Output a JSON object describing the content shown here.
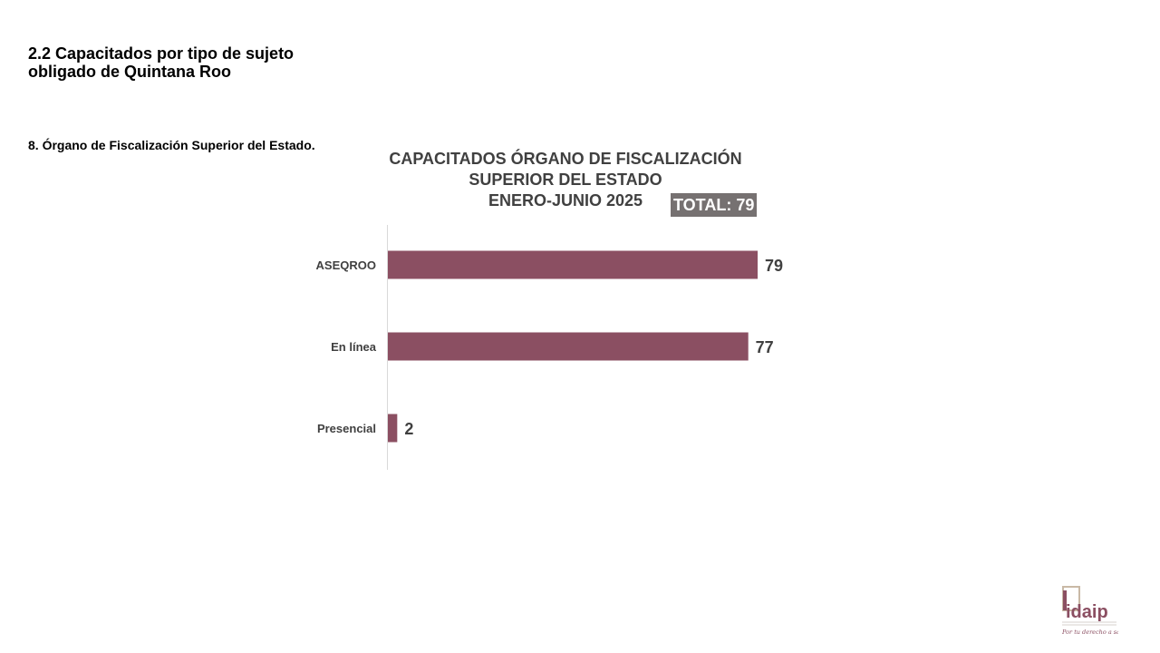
{
  "slide": {
    "title_line1": "2.2 Capacitados por tipo de sujeto",
    "title_line2": "obligado de Quintana Roo",
    "subtitle": "8. Órgano de Fiscalización Superior del Estado."
  },
  "chart_data": {
    "type": "bar",
    "orientation": "horizontal",
    "title_lines": [
      "CAPACITADOS ÓRGANO DE FISCALIZACIÓN",
      "SUPERIOR DEL ESTADO",
      "ENERO-JUNIO 2025"
    ],
    "total_label": "TOTAL: 79",
    "categories": [
      "ASEQROO",
      "En línea",
      "Presencial"
    ],
    "values": [
      79,
      77,
      2
    ],
    "xlim": [
      0,
      79
    ],
    "bar_color": "#8B4F62",
    "grid": false
  },
  "logo": {
    "text": "idaip",
    "tagline": "Por tu derecho a saber"
  }
}
